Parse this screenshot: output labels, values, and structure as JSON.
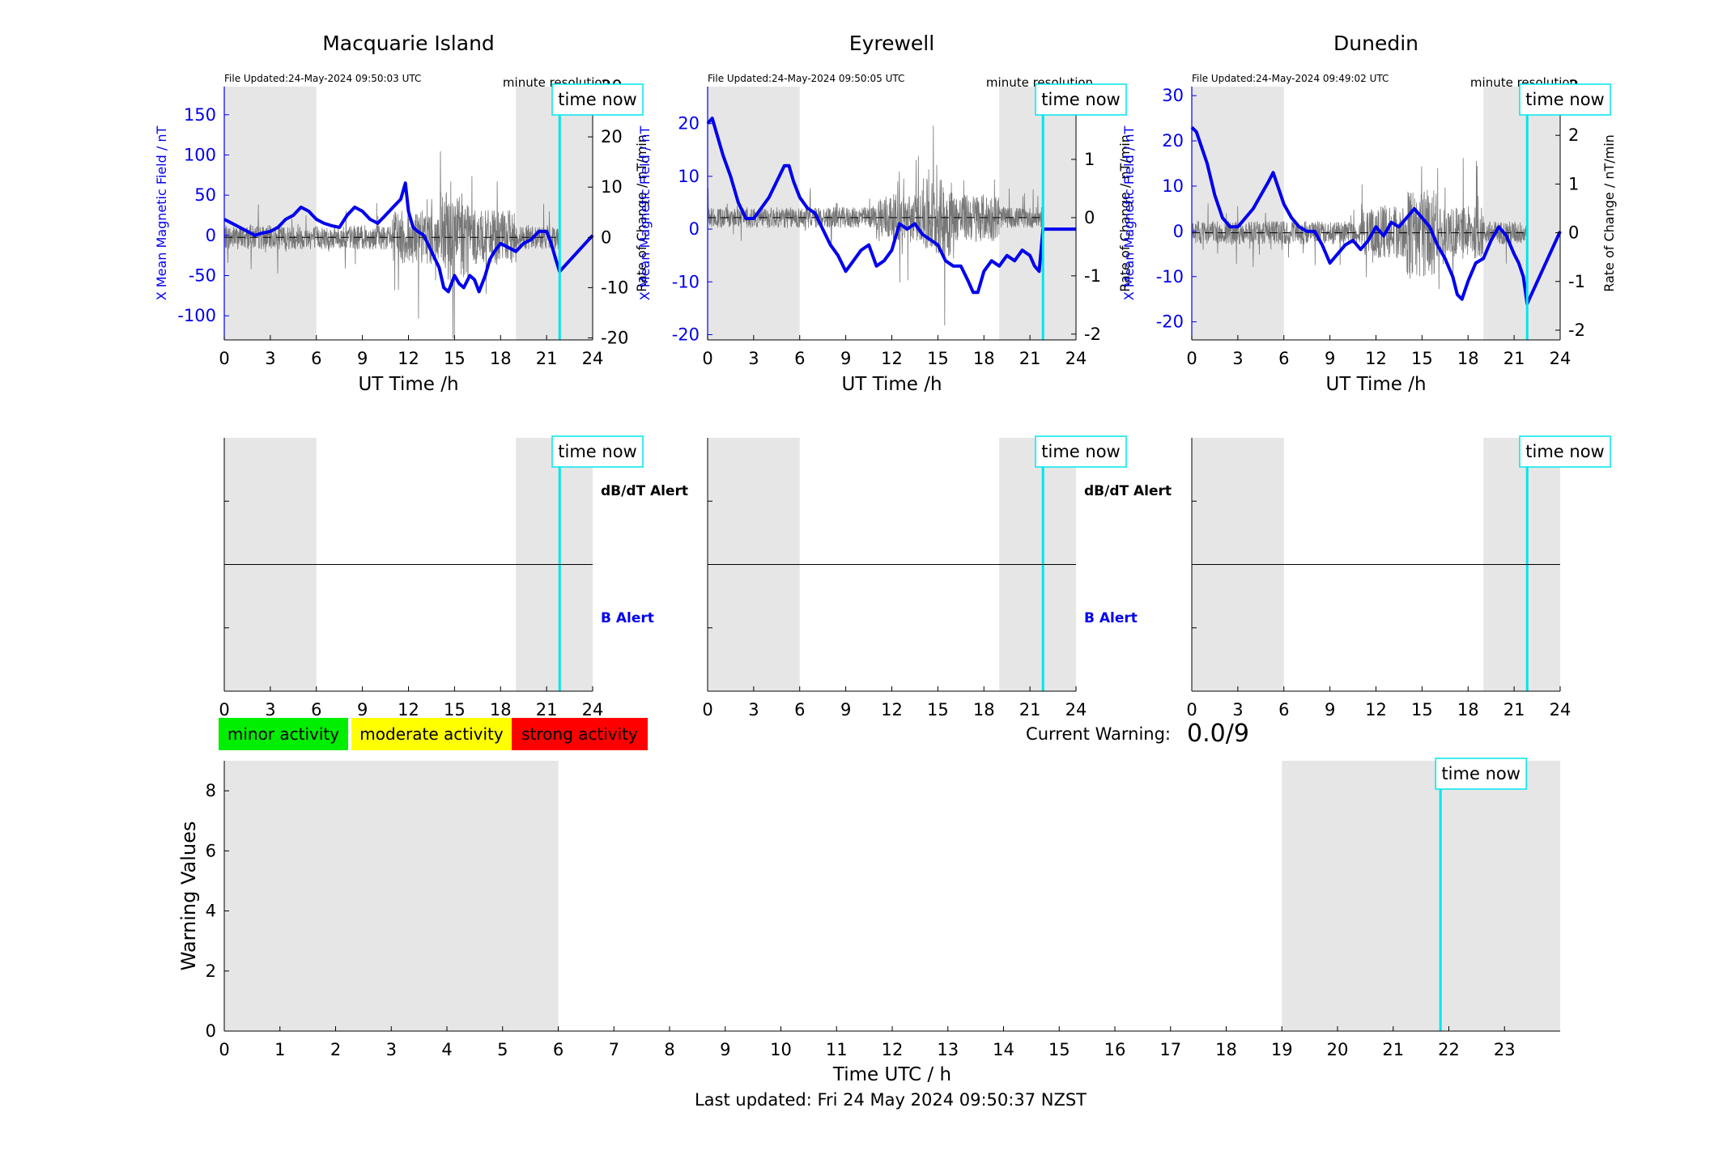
{
  "colors": {
    "field": "#0000ee",
    "rate": "#777777",
    "shade": "#e6e6e6",
    "time_now": "#00e5ee",
    "minor": "#00ee00",
    "moderate": "#ffff00",
    "strong": "#ff0000",
    "b_alert": "#0000ee"
  },
  "common": {
    "time_now_label": "time now",
    "time_now_hour": 21.85,
    "night_bands": [
      [
        0,
        6
      ],
      [
        19,
        24
      ]
    ],
    "x_ticks": [
      0,
      3,
      6,
      9,
      12,
      15,
      18,
      21,
      24
    ],
    "x_label": "UT Time /h",
    "y_label_left": "X Mean Magnetic Field / nT",
    "y_label_right": "Rate of Change / nT/min",
    "resolution_label": "minute resolution",
    "dbdt_alert": "dB/dT Alert",
    "b_alert": "B Alert"
  },
  "stations": [
    {
      "name": "Macquarie Island",
      "file_updated": "File Updated:24-May-2024 09:50:03 UTC",
      "field_ylim": [
        -130,
        185
      ],
      "field_ticks": [
        150,
        100,
        50,
        0,
        -50,
        -100
      ],
      "rate_ylim": [
        -20.4,
        30
      ],
      "rate_ticks": [
        30,
        20,
        10,
        0,
        -10,
        -20
      ],
      "show_alert_labels": true
    },
    {
      "name": "Eyrewell",
      "file_updated": "File Updated:24-May-2024 09:50:05 UTC",
      "field_ylim": [
        -21,
        27
      ],
      "field_ticks": [
        20,
        10,
        0,
        -10,
        -20
      ],
      "rate_ylim": [
        -2.1,
        2.25
      ],
      "rate_ticks": [
        2,
        1,
        0,
        -1,
        -2
      ],
      "show_alert_labels": true
    },
    {
      "name": "Dunedin",
      "file_updated": "File Updated:24-May-2024 09:49:02 UTC",
      "field_ylim": [
        -24,
        32
      ],
      "field_ticks": [
        30,
        20,
        10,
        0,
        -10,
        -20
      ],
      "rate_ylim": [
        -2.2,
        3
      ],
      "rate_ticks": [
        3,
        2,
        1,
        0,
        -1,
        -2
      ],
      "show_alert_labels": false
    }
  ],
  "legend": {
    "minor": "minor activity",
    "moderate": "moderate activity",
    "strong": "strong activity"
  },
  "current_warning": {
    "label": "Current Warning:",
    "value": "0.0/9"
  },
  "footer": "Last updated: Fri 24 May 2024 09:50:37 NZST",
  "chart_data": [
    {
      "type": "line",
      "title": "Macquarie Island",
      "xlabel": "UT Time /h",
      "ylabel": "X Mean Magnetic Field / nT",
      "y2label": "Rate of Change / nT/min",
      "xlim": [
        0,
        24
      ],
      "ylim": [
        -130,
        185
      ],
      "series": [
        {
          "x": [
            0,
            0.5,
            1,
            1.5,
            2,
            2.5,
            3,
            3.5,
            4,
            4.5,
            5,
            5.5,
            6,
            6.5,
            7,
            7.5,
            8,
            8.5,
            9,
            9.5,
            10,
            10.5,
            11,
            11.5,
            11.8,
            12,
            12.3,
            12.6,
            13,
            13.5,
            14,
            14.3,
            14.6,
            15,
            15.3,
            15.6,
            16,
            16.3,
            16.6,
            17,
            17.3,
            17.6,
            18,
            18.5,
            19,
            19.5,
            20,
            20.5,
            21,
            21.3,
            21.6,
            21.85,
            24
          ],
          "y": [
            20,
            15,
            10,
            5,
            0,
            3,
            5,
            10,
            20,
            25,
            35,
            30,
            20,
            15,
            12,
            10,
            25,
            35,
            30,
            20,
            15,
            25,
            35,
            45,
            65,
            30,
            10,
            5,
            0,
            -20,
            -40,
            -65,
            -70,
            -50,
            -60,
            -65,
            -50,
            -55,
            -70,
            -50,
            -30,
            -20,
            -10,
            -15,
            -20,
            -10,
            -5,
            5,
            5,
            -10,
            -30,
            -45,
            0
          ]
        }
      ]
    },
    {
      "type": "line",
      "title": "Eyrewell",
      "xlabel": "UT Time /h",
      "ylabel": "X Mean Magnetic Field / nT",
      "y2label": "Rate of Change / nT/min",
      "xlim": [
        0,
        24
      ],
      "ylim": [
        -21,
        27
      ],
      "series": [
        {
          "x": [
            0,
            0.3,
            0.6,
            1,
            1.5,
            2,
            2.5,
            3,
            3.5,
            4,
            4.5,
            5,
            5.3,
            5.6,
            6,
            6.5,
            7,
            7.5,
            8,
            8.5,
            9,
            9.5,
            10,
            10.5,
            11,
            11.5,
            12,
            12.5,
            13,
            13.5,
            14,
            14.5,
            15,
            15.5,
            16,
            16.5,
            17,
            17.3,
            17.6,
            18,
            18.5,
            19,
            19.5,
            20,
            20.5,
            21,
            21.3,
            21.6,
            21.85,
            24
          ],
          "y": [
            20,
            21,
            18,
            14,
            10,
            5,
            2,
            2,
            4,
            6,
            9,
            12,
            12,
            9,
            6,
            4,
            3,
            0,
            -3,
            -5,
            -8,
            -6,
            -4,
            -3,
            -7,
            -6,
            -4,
            1,
            0,
            1,
            -1,
            -2,
            -3,
            -6,
            -7,
            -7,
            -10,
            -12,
            -12,
            -8,
            -6,
            -7,
            -5,
            -6,
            -4,
            -5,
            -7,
            -8,
            0,
            0
          ]
        }
      ]
    },
    {
      "type": "line",
      "title": "Dunedin",
      "xlabel": "UT Time /h",
      "ylabel": "X Mean Magnetic Field / nT",
      "y2label": "Rate of Change / nT/min",
      "xlim": [
        0,
        24
      ],
      "ylim": [
        -24,
        32
      ],
      "series": [
        {
          "x": [
            0,
            0.3,
            0.6,
            1,
            1.5,
            2,
            2.5,
            3,
            3.5,
            4,
            4.5,
            5,
            5.3,
            5.6,
            6,
            6.5,
            7,
            7.5,
            8,
            8.5,
            9,
            9.5,
            10,
            10.5,
            11,
            11.5,
            12,
            12.5,
            13,
            13.5,
            14,
            14.5,
            15,
            15.5,
            16,
            16.5,
            17,
            17.3,
            17.6,
            18,
            18.5,
            19,
            19.5,
            20,
            20.5,
            21,
            21.3,
            21.6,
            21.85,
            24
          ],
          "y": [
            23,
            22,
            19,
            15,
            8,
            3,
            1,
            1,
            3,
            5,
            8,
            11,
            13,
            10,
            6,
            3,
            1,
            0,
            0,
            -3,
            -7,
            -5,
            -3,
            -2,
            -4,
            -2,
            1,
            -1,
            2,
            1,
            3,
            5,
            3,
            1,
            -3,
            -6,
            -10,
            -14,
            -15,
            -11,
            -7,
            -6,
            -2,
            1,
            -1,
            -5,
            -7,
            -10,
            -16,
            0
          ]
        }
      ]
    },
    {
      "type": "bar",
      "title": "",
      "xlabel": "Time UTC / h",
      "ylabel": "Warning Values",
      "xlim": [
        0,
        24
      ],
      "ylim": [
        0,
        9
      ],
      "x_ticks": [
        0,
        1,
        2,
        3,
        4,
        5,
        6,
        7,
        8,
        9,
        10,
        11,
        12,
        13,
        14,
        15,
        16,
        17,
        18,
        19,
        20,
        21,
        22,
        23
      ],
      "y_ticks": [
        0,
        2,
        4,
        6,
        8
      ],
      "series": [
        {
          "values": []
        }
      ]
    }
  ]
}
